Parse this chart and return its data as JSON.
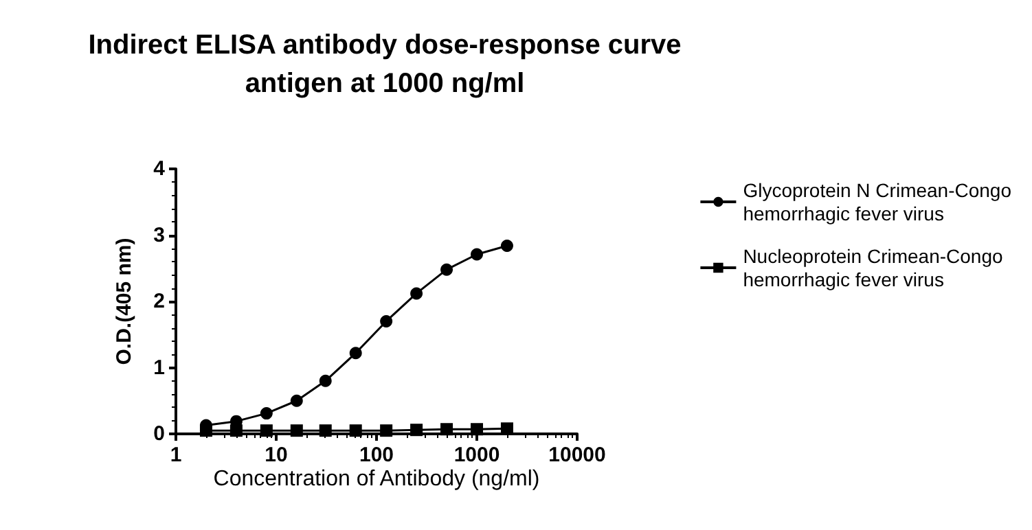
{
  "chart_data": {
    "type": "line",
    "title": "Indirect ELISA antibody dose-response curve\nantigen at 1000 ng/ml",
    "xlabel": "Concentration of Antibody (ng/ml)",
    "ylabel": "O.D.(405 nm)",
    "x": [
      2,
      4,
      8,
      16,
      31,
      62,
      125,
      250,
      500,
      1000,
      2000
    ],
    "series": [
      {
        "name": "Glycoprotein N Crimean-Congo\nhemorrhagic fever virus",
        "color": "#000000",
        "marker": "circle",
        "values": [
          0.13,
          0.19,
          0.31,
          0.5,
          0.8,
          1.22,
          1.7,
          2.12,
          2.48,
          2.71,
          2.84
        ]
      },
      {
        "name": "Nucleoprotein Crimean-Congo\nhemorrhagic fever virus",
        "color": "#000000",
        "marker": "square",
        "values": [
          0.05,
          0.05,
          0.05,
          0.05,
          0.05,
          0.05,
          0.05,
          0.06,
          0.07,
          0.07,
          0.08
        ]
      }
    ],
    "log": "x",
    "xlim": [
      1,
      10000
    ],
    "xticks": [
      1,
      10,
      100,
      1000,
      10000
    ],
    "ylim": [
      0,
      4
    ],
    "yticks": [
      0,
      1,
      2,
      3,
      4
    ],
    "grid": false,
    "legend": "right",
    "line_style": "solid"
  }
}
